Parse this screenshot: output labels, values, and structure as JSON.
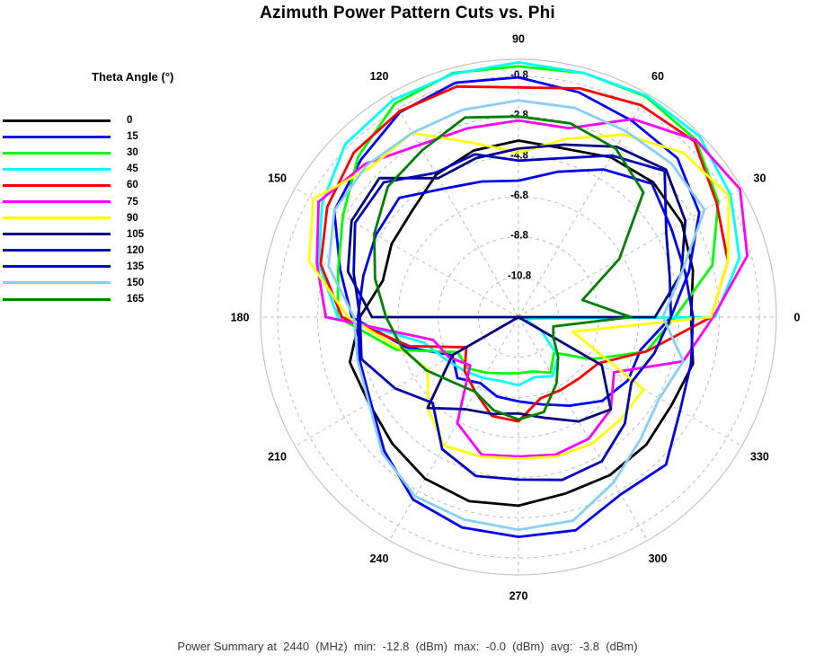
{
  "chart_data": {
    "type": "line",
    "subtype": "polar",
    "title": "Azimuth Power Pattern Cuts vs. Phi",
    "legend_title": "Theta Angle (°)",
    "footer": "Power Summary at  2440  (MHz)  min:  -12.8  (dBm)  max:  -0.0  (dBm)  avg:  -3.8  (dBm)",
    "units": "dBm",
    "frequency_mhz": 2440,
    "summary": {
      "min": -12.8,
      "max": -0.0,
      "avg": -3.8
    },
    "angle_ticks": [
      0,
      30,
      60,
      90,
      120,
      150,
      180,
      210,
      240,
      270,
      300,
      330
    ],
    "radial_ticks": [
      "-0.8",
      "-2.8",
      "-4.8",
      "-6.8",
      "-8.8",
      "-10.8"
    ],
    "radial_tick_values": [
      -0.8,
      -2.8,
      -4.8,
      -6.8,
      -8.8,
      -10.8
    ],
    "radial_range": [
      -12.8,
      0.05
    ],
    "grid": true,
    "legend_position": "left",
    "phi": [
      0,
      15,
      30,
      45,
      60,
      75,
      90,
      105,
      120,
      135,
      150,
      165,
      180,
      195,
      210,
      225,
      240,
      255,
      270,
      285,
      300,
      315,
      330,
      345
    ],
    "series": [
      {
        "name": "0",
        "color": "#000000",
        "values": [
          -4.2,
          -3.8,
          -3.4,
          -3.3,
          -3.6,
          -4.1,
          -4.0,
          -4.2,
          -4.6,
          -5.3,
          -5.5,
          -5.8,
          -4.9,
          -4.1,
          -4.2,
          -3.9,
          -3.5,
          -3.3,
          -3.4,
          -3.7,
          -3.7,
          -3.8,
          -4.0,
          -3.8
        ]
      },
      {
        "name": "15",
        "color": "#0000FF",
        "values": [
          -5.2,
          -4.0,
          -2.4,
          -1.6,
          -1.5,
          -1.2,
          -0.85,
          -0.7,
          -1.0,
          -1.7,
          -2.2,
          -3.6,
          -4.5,
          -7.0,
          -9.0,
          -8.5,
          -9.0,
          -8.7,
          -8.6,
          -8.3,
          -7.7,
          -6.9,
          -6.5,
          -6.5
        ]
      },
      {
        "name": "30",
        "color": "#00FF00",
        "values": [
          -5.0,
          -2.8,
          -1.3,
          -0.3,
          -0.1,
          -0.2,
          -0.3,
          -0.2,
          -0.5,
          -1.5,
          -2.7,
          -3.5,
          -3.8,
          -6.5,
          -9.3,
          -9.2,
          -9.6,
          -9.9,
          -10.0,
          -10.0,
          -9.6,
          -10.3,
          -8.6,
          -6.2
        ]
      },
      {
        "name": "45",
        "color": "#00FFFF",
        "values": [
          -3.0,
          -1.4,
          -0.6,
          -0.05,
          -0.05,
          -0.2,
          -0.1,
          -0.25,
          -0.3,
          -0.6,
          -1.5,
          -2.5,
          -3.8,
          -7.9,
          -8.6,
          -9.0,
          -9.3,
          -9.5,
          -9.4,
          -9.7,
          -9.4,
          -10.0,
          -11.5,
          -12.5
        ]
      },
      {
        "name": "60",
        "color": "#FF0000",
        "values": [
          -3.2,
          -2.0,
          -1.4,
          -0.4,
          -0.6,
          -1.0,
          -1.35,
          -0.9,
          -0.95,
          -1.2,
          -1.8,
          -2.6,
          -4.0,
          -7.2,
          -9.8,
          -9.0,
          -8.5,
          -7.7,
          -7.6,
          -8.6,
          -8.6,
          -8.5,
          -8.2,
          -6.2
        ]
      },
      {
        "name": "75",
        "color": "#FF00FF",
        "values": [
          -3.1,
          -1.0,
          -0.05,
          -0.3,
          -1.4,
          -3.05,
          -3.0,
          -3.05,
          -2.9,
          -2.0,
          -1.3,
          -2.4,
          -3.2,
          -8.4,
          -8.8,
          -9.4,
          -6.7,
          -5.7,
          -5.85,
          -5.7,
          -5.8,
          -6.3,
          -7.3,
          -4.3
        ]
      },
      {
        "name": "90",
        "color": "#FFFF00",
        "values": [
          -3.2,
          -2.0,
          -0.7,
          -1.2,
          -2.3,
          -3.6,
          -4.6,
          -3.8,
          -2.2,
          -2.3,
          -1.0,
          -2.0,
          -4.3,
          -6.7,
          -7.6,
          -6.4,
          -5.4,
          -5.6,
          -5.75,
          -5.6,
          -5.5,
          -5.6,
          -5.6,
          -10.0
        ]
      },
      {
        "name": "105",
        "color": "#000080",
        "values": [
          -6.0,
          -4.4,
          -3.2,
          -2.4,
          -3.0,
          -3.9,
          -4.4,
          -4.6,
          -4.8,
          -3.0,
          -3.2,
          -4.0,
          -5.5,
          -12.8,
          -9.0,
          -6.4,
          -7.5,
          -7.8,
          -8.0,
          -7.6,
          -6.8,
          -6.3,
          -8.0,
          -12.8
        ]
      },
      {
        "name": "120",
        "color": "#0000C0",
        "values": [
          -5.2,
          -5.0,
          -4.3,
          -2.5,
          -3.5,
          -4.6,
          -5.0,
          -4.4,
          -4.5,
          -3.3,
          -3.4,
          -4.3,
          -4.9,
          -4.7,
          -5.7,
          -6.75,
          -5.2,
          -4.6,
          -4.7,
          -4.4,
          -4.5,
          -5.3,
          -6.3,
          -5.8
        ]
      },
      {
        "name": "135",
        "color": "#0000EE",
        "values": [
          -4.1,
          -4.2,
          -4.0,
          -3.4,
          -4.3,
          -5.3,
          -6.0,
          -5.8,
          -5.4,
          -4.4,
          -4.6,
          -4.8,
          -4.8,
          -4.6,
          -4.3,
          -3.35,
          -2.3,
          -1.95,
          -1.85,
          -1.8,
          -2.6,
          -2.4,
          -3.5,
          -3.9
        ]
      },
      {
        "name": "150",
        "color": "#87CEFA",
        "values": [
          -5.6,
          -4.4,
          -2.1,
          -2.0,
          -2.1,
          -2.0,
          -2.0,
          -2.1,
          -2.2,
          -2.1,
          -2.2,
          -3.0,
          -4.6,
          -4.5,
          -4.2,
          -3.2,
          -2.5,
          -2.35,
          -2.2,
          -2.3,
          -3.3,
          -4.2,
          -4.7,
          -4.3
        ]
      },
      {
        "name": "165",
        "color": "#008000",
        "values": [
          -7.2,
          -9.5,
          -7.0,
          -4.0,
          -3.1,
          -2.8,
          -2.8,
          -2.5,
          -3.2,
          -3.6,
          -4.5,
          -5.4,
          -6.2,
          -6.8,
          -7.5,
          -8.2,
          -8.5,
          -8.0,
          -7.7,
          -7.9,
          -9.0,
          -10.0,
          -10.8,
          -11.0
        ]
      }
    ],
    "grid_color": "#bbbbbb",
    "outer_circle_color": "#c4c4c4"
  }
}
